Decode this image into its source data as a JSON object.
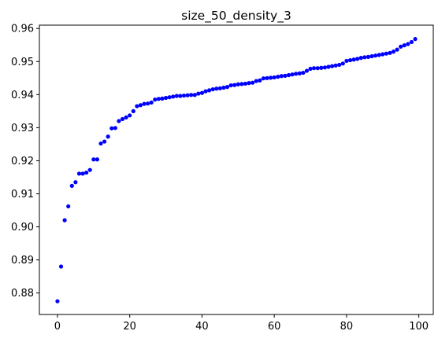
{
  "chart_data": {
    "type": "scatter",
    "title": "size_50_density_3",
    "xlabel": "",
    "ylabel": "",
    "xlim": [
      -5,
      104
    ],
    "ylim": [
      0.8735,
      0.961
    ],
    "x_ticks": [
      0,
      20,
      40,
      60,
      80,
      100
    ],
    "x_tick_labels": [
      "0",
      "20",
      "40",
      "60",
      "80",
      "100"
    ],
    "y_ticks": [
      0.88,
      0.89,
      0.9,
      0.91,
      0.92,
      0.93,
      0.94,
      0.95,
      0.96
    ],
    "y_tick_labels": [
      "0.88",
      "0.89",
      "0.90",
      "0.91",
      "0.92",
      "0.93",
      "0.94",
      "0.95",
      "0.96"
    ],
    "grid": false,
    "marker_color": "#0000ff",
    "series": [
      {
        "x": [
          0,
          1,
          2,
          3,
          4,
          5,
          6,
          7,
          8,
          9,
          10,
          11,
          12,
          13,
          14,
          15,
          16,
          17,
          18,
          19,
          20,
          21,
          22,
          23,
          24,
          25,
          26,
          27,
          28,
          29,
          30,
          31,
          32,
          33,
          34,
          35,
          36,
          37,
          38,
          39,
          40,
          41,
          42,
          43,
          44,
          45,
          46,
          47,
          48,
          49,
          50,
          51,
          52,
          53,
          54,
          55,
          56,
          57,
          58,
          59,
          60,
          61,
          62,
          63,
          64,
          65,
          66,
          67,
          68,
          69,
          70,
          71,
          72,
          73,
          74,
          75,
          76,
          77,
          78,
          79,
          80,
          81,
          82,
          83,
          84,
          85,
          86,
          87,
          88,
          89,
          90,
          91,
          92,
          93,
          94,
          95,
          96,
          97,
          98,
          99
        ],
        "y": [
          0.8775,
          0.888,
          0.902,
          0.9062,
          0.9124,
          0.9135,
          0.9161,
          0.9161,
          0.9164,
          0.9172,
          0.9204,
          0.9204,
          0.9252,
          0.9258,
          0.9273,
          0.9298,
          0.9299,
          0.932,
          0.9326,
          0.9331,
          0.9337,
          0.935,
          0.9365,
          0.9368,
          0.9372,
          0.9373,
          0.9376,
          0.9385,
          0.9387,
          0.9388,
          0.939,
          0.9392,
          0.9394,
          0.9396,
          0.9396,
          0.9397,
          0.9398,
          0.9399,
          0.9399,
          0.9403,
          0.9405,
          0.941,
          0.9413,
          0.9416,
          0.9418,
          0.9419,
          0.9421,
          0.9423,
          0.9428,
          0.9429,
          0.9431,
          0.9432,
          0.9433,
          0.9435,
          0.9436,
          0.9441,
          0.9443,
          0.9449,
          0.945,
          0.9451,
          0.9452,
          0.9454,
          0.9456,
          0.9457,
          0.9459,
          0.9461,
          0.9463,
          0.9464,
          0.9466,
          0.9472,
          0.9478,
          0.948,
          0.948,
          0.9481,
          0.9482,
          0.9484,
          0.9486,
          0.9488,
          0.949,
          0.9494,
          0.9502,
          0.9504,
          0.9506,
          0.9508,
          0.9511,
          0.9513,
          0.9514,
          0.9516,
          0.9518,
          0.952,
          0.9522,
          0.9524,
          0.9526,
          0.953,
          0.9536,
          0.9545,
          0.9549,
          0.9553,
          0.9559,
          0.9568
        ]
      }
    ]
  }
}
